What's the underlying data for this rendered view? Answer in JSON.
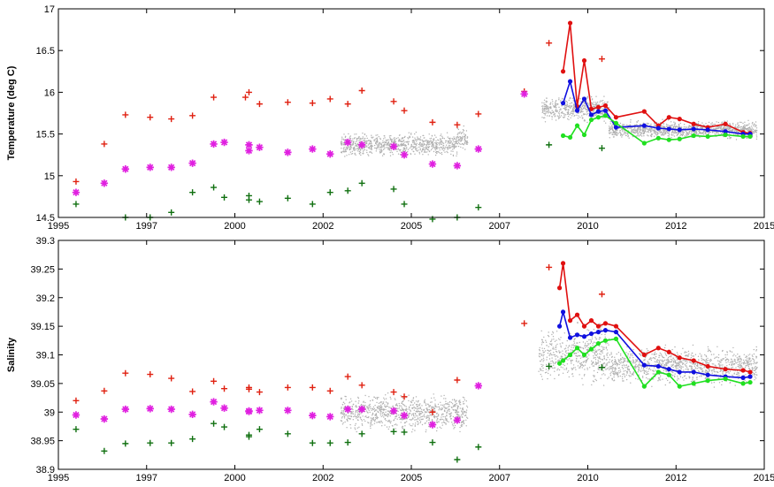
{
  "chart_data": [
    {
      "type": "scatter",
      "title": "",
      "xlabel": "",
      "ylabel": "Temperature (deg C)",
      "xlim": [
        1995,
        2015
      ],
      "ylim": [
        14.5,
        17
      ],
      "x_ticks": [
        1995,
        1997.5,
        2000,
        2002.5,
        2005,
        2007.5,
        2010,
        2012.5,
        2015
      ],
      "x_tick_labels": [
        "1995",
        "1997",
        "2000",
        "2002",
        "2005",
        "2007",
        "2010",
        "2012",
        "2015"
      ],
      "y_ticks": [
        14.5,
        15,
        15.5,
        16,
        16.5,
        17
      ],
      "y_tick_labels": [
        "14.5",
        "15",
        "15.5",
        "16",
        "16.5",
        "17"
      ],
      "grid": false,
      "background_dots": {
        "color": "#b0b0b0",
        "clusters": [
          {
            "x": [
              2003,
              2006.3
            ],
            "y_center": 15.37,
            "y_spread": 0.11
          },
          {
            "x": [
              2006.3,
              2006.6
            ],
            "y_center": 15.45,
            "y_spread": 0.12
          },
          {
            "x": [
              2008.7,
              2010.6
            ],
            "y_center": 15.8,
            "y_spread": 0.12
          },
          {
            "x": [
              2010.6,
              2014.8
            ],
            "y_center": 15.55,
            "y_spread": 0.08
          }
        ]
      },
      "series": [
        {
          "marker": "plus",
          "color": "#e02010",
          "x": [
            1995.5,
            1996.3,
            1996.9,
            1997.6,
            1998.2,
            1998.8,
            1999.4,
            2000.3,
            2000.4,
            2000.7,
            2001.5,
            2002.2,
            2002.7,
            2003.2,
            2003.6,
            2004.5,
            2004.8,
            2005.6,
            2006.3,
            2006.9,
            2008.2,
            2008.9,
            2010.4
          ],
          "y": [
            14.93,
            15.38,
            15.73,
            15.7,
            15.68,
            15.72,
            15.94,
            15.94,
            16.0,
            15.86,
            15.88,
            15.87,
            15.92,
            15.86,
            16.02,
            15.89,
            15.78,
            15.64,
            15.61,
            15.74,
            16.01,
            16.59,
            16.4
          ]
        },
        {
          "marker": "star",
          "color": "#e020e0",
          "x": [
            1995.5,
            1996.3,
            1996.9,
            1997.6,
            1998.2,
            1998.8,
            1999.4,
            1999.7,
            2000.4,
            2000.4,
            2000.7,
            2001.5,
            2002.2,
            2002.7,
            2003.2,
            2003.6,
            2004.5,
            2004.8,
            2005.6,
            2006.3,
            2006.9,
            2008.2
          ],
          "y": [
            14.8,
            14.91,
            15.08,
            15.1,
            15.1,
            15.15,
            15.38,
            15.4,
            15.37,
            15.3,
            15.34,
            15.28,
            15.32,
            15.26,
            15.4,
            15.37,
            15.35,
            15.25,
            15.14,
            15.12,
            15.32,
            15.98
          ]
        },
        {
          "marker": "plus",
          "color": "#107010",
          "x": [
            1995.5,
            1996.9,
            1997.6,
            1998.2,
            1998.8,
            1999.4,
            1999.7,
            2000.4,
            2000.4,
            2000.7,
            2001.5,
            2002.2,
            2002.7,
            2003.2,
            2003.6,
            2004.5,
            2004.8,
            2005.6,
            2006.3,
            2006.9,
            2008.9,
            2010.4
          ],
          "y": [
            14.66,
            14.5,
            14.5,
            14.56,
            14.8,
            14.86,
            14.74,
            14.71,
            14.76,
            14.69,
            14.73,
            14.66,
            14.8,
            14.82,
            14.91,
            14.84,
            14.66,
            14.48,
            14.5,
            14.62,
            15.37,
            15.33
          ]
        },
        {
          "marker": "line-dot",
          "color": "#e01010",
          "x": [
            2009.3,
            2009.5,
            2009.7,
            2009.9,
            2010.1,
            2010.3,
            2010.5,
            2010.8,
            2011.6,
            2012.0,
            2012.3,
            2012.6,
            2013.0,
            2013.4,
            2013.9,
            2014.4,
            2014.6
          ],
          "y": [
            16.25,
            16.83,
            15.83,
            16.38,
            15.8,
            15.82,
            15.84,
            15.7,
            15.77,
            15.6,
            15.7,
            15.68,
            15.62,
            15.58,
            15.62,
            15.52,
            15.51
          ]
        },
        {
          "marker": "line-dot",
          "color": "#1010e0",
          "x": [
            2009.3,
            2009.5,
            2009.7,
            2009.9,
            2010.1,
            2010.3,
            2010.5,
            2010.8,
            2011.6,
            2012.0,
            2012.3,
            2012.6,
            2013.0,
            2013.4,
            2013.9,
            2014.4,
            2014.6
          ],
          "y": [
            15.87,
            16.13,
            15.78,
            15.92,
            15.73,
            15.77,
            15.78,
            15.58,
            15.6,
            15.57,
            15.56,
            15.55,
            15.56,
            15.55,
            15.53,
            15.5,
            15.5
          ]
        },
        {
          "marker": "line-dot",
          "color": "#20e020",
          "x": [
            2009.3,
            2009.5,
            2009.7,
            2009.9,
            2010.1,
            2010.3,
            2010.5,
            2010.8,
            2011.6,
            2012.0,
            2012.3,
            2012.6,
            2013.0,
            2013.4,
            2013.9,
            2014.4,
            2014.6
          ],
          "y": [
            15.48,
            15.46,
            15.6,
            15.49,
            15.67,
            15.7,
            15.72,
            15.63,
            15.39,
            15.45,
            15.43,
            15.44,
            15.48,
            15.47,
            15.49,
            15.47,
            15.47
          ]
        }
      ]
    },
    {
      "type": "scatter",
      "title": "",
      "xlabel": "",
      "ylabel": "Salinity",
      "xlim": [
        1995,
        2015
      ],
      "ylim": [
        38.9,
        39.3
      ],
      "x_ticks": [
        1995,
        1997.5,
        2000,
        2002.5,
        2005,
        2007.5,
        2010,
        2012.5,
        2015
      ],
      "x_tick_labels": [
        "1995",
        "1997",
        "2000",
        "2002",
        "2005",
        "2007",
        "2010",
        "2012",
        "2015"
      ],
      "y_ticks": [
        38.9,
        38.95,
        39,
        39.05,
        39.1,
        39.15,
        39.2,
        39.25,
        39.3
      ],
      "y_tick_labels": [
        "38.9",
        "38.95",
        "39",
        "39.05",
        "39.1",
        "39.15",
        "39.2",
        "39.25",
        "39.3"
      ],
      "grid": false,
      "background_dots": {
        "color": "#b0b0b0",
        "clusters": [
          {
            "x": [
              2003,
              2006.6
            ],
            "y_center": 39.0,
            "y_spread": 0.025
          },
          {
            "x": [
              2008.6,
              2010.6
            ],
            "y_center": 39.1,
            "y_spread": 0.04
          },
          {
            "x": [
              2010.6,
              2014.8
            ],
            "y_center": 39.08,
            "y_spread": 0.025
          }
        ]
      },
      "series": [
        {
          "marker": "plus",
          "color": "#e02010",
          "x": [
            1995.5,
            1996.3,
            1996.9,
            1997.6,
            1998.2,
            1998.8,
            1999.4,
            1999.7,
            2000.4,
            2000.4,
            2000.7,
            2001.5,
            2002.2,
            2002.7,
            2003.2,
            2003.6,
            2004.5,
            2004.8,
            2005.6,
            2006.3,
            2008.2,
            2008.9,
            2010.4
          ],
          "y": [
            39.02,
            39.037,
            39.068,
            39.066,
            39.059,
            39.036,
            39.054,
            39.041,
            39.043,
            39.04,
            39.035,
            39.043,
            39.043,
            39.037,
            39.062,
            39.047,
            39.035,
            39.027,
            39.0,
            39.056,
            39.155,
            39.253,
            39.206
          ]
        },
        {
          "marker": "star",
          "color": "#e020e0",
          "x": [
            1995.5,
            1996.3,
            1996.9,
            1997.6,
            1998.2,
            1998.8,
            1999.4,
            1999.7,
            2000.4,
            2000.4,
            2000.7,
            2001.5,
            2002.2,
            2002.7,
            2003.2,
            2003.6,
            2004.5,
            2004.8,
            2005.6,
            2006.3,
            2006.9
          ],
          "y": [
            38.995,
            38.988,
            39.005,
            39.006,
            39.005,
            38.996,
            39.018,
            39.007,
            39.001,
            39.002,
            39.003,
            39.003,
            38.994,
            38.992,
            39.005,
            39.005,
            39.002,
            38.994,
            38.978,
            38.986,
            39.046
          ]
        },
        {
          "marker": "plus",
          "color": "#107010",
          "x": [
            1995.5,
            1996.3,
            1996.9,
            1997.6,
            1998.2,
            1998.8,
            1999.4,
            1999.7,
            2000.4,
            2000.4,
            2000.7,
            2001.5,
            2002.2,
            2002.7,
            2003.2,
            2003.6,
            2004.5,
            2004.8,
            2005.6,
            2006.3,
            2006.9,
            2008.9,
            2010.4
          ],
          "y": [
            38.97,
            38.932,
            38.945,
            38.946,
            38.946,
            38.953,
            38.98,
            38.974,
            38.96,
            38.957,
            38.97,
            38.962,
            38.946,
            38.946,
            38.947,
            38.962,
            38.966,
            38.965,
            38.947,
            38.917,
            38.939,
            39.08,
            39.078
          ]
        },
        {
          "marker": "line-dot",
          "color": "#e01010",
          "x": [
            2009.2,
            2009.3,
            2009.5,
            2009.7,
            2009.9,
            2010.1,
            2010.3,
            2010.5,
            2010.8,
            2011.6,
            2012.0,
            2012.3,
            2012.6,
            2013.0,
            2013.4,
            2013.9,
            2014.4,
            2014.6
          ],
          "y": [
            39.217,
            39.26,
            39.16,
            39.17,
            39.15,
            39.16,
            39.15,
            39.155,
            39.15,
            39.1,
            39.112,
            39.105,
            39.095,
            39.09,
            39.08,
            39.075,
            39.073,
            39.07
          ]
        },
        {
          "marker": "line-dot",
          "color": "#1010e0",
          "x": [
            2009.2,
            2009.3,
            2009.5,
            2009.7,
            2009.9,
            2010.1,
            2010.3,
            2010.5,
            2010.8,
            2011.6,
            2012.0,
            2012.3,
            2012.6,
            2013.0,
            2013.4,
            2013.9,
            2014.4,
            2014.6
          ],
          "y": [
            39.15,
            39.175,
            39.13,
            39.135,
            39.132,
            39.137,
            39.14,
            39.143,
            39.14,
            39.082,
            39.08,
            39.075,
            39.07,
            39.07,
            39.065,
            39.062,
            39.06,
            39.062
          ]
        },
        {
          "marker": "line-dot",
          "color": "#20e020",
          "x": [
            2009.2,
            2009.3,
            2009.5,
            2009.7,
            2009.9,
            2010.1,
            2010.3,
            2010.5,
            2010.8,
            2011.6,
            2012.0,
            2012.3,
            2012.6,
            2013.0,
            2013.4,
            2013.9,
            2014.4,
            2014.6
          ],
          "y": [
            39.085,
            39.09,
            39.1,
            39.112,
            39.1,
            39.11,
            39.12,
            39.125,
            39.128,
            39.045,
            39.07,
            39.065,
            39.045,
            39.05,
            39.055,
            39.058,
            39.05,
            39.052
          ]
        }
      ]
    }
  ]
}
